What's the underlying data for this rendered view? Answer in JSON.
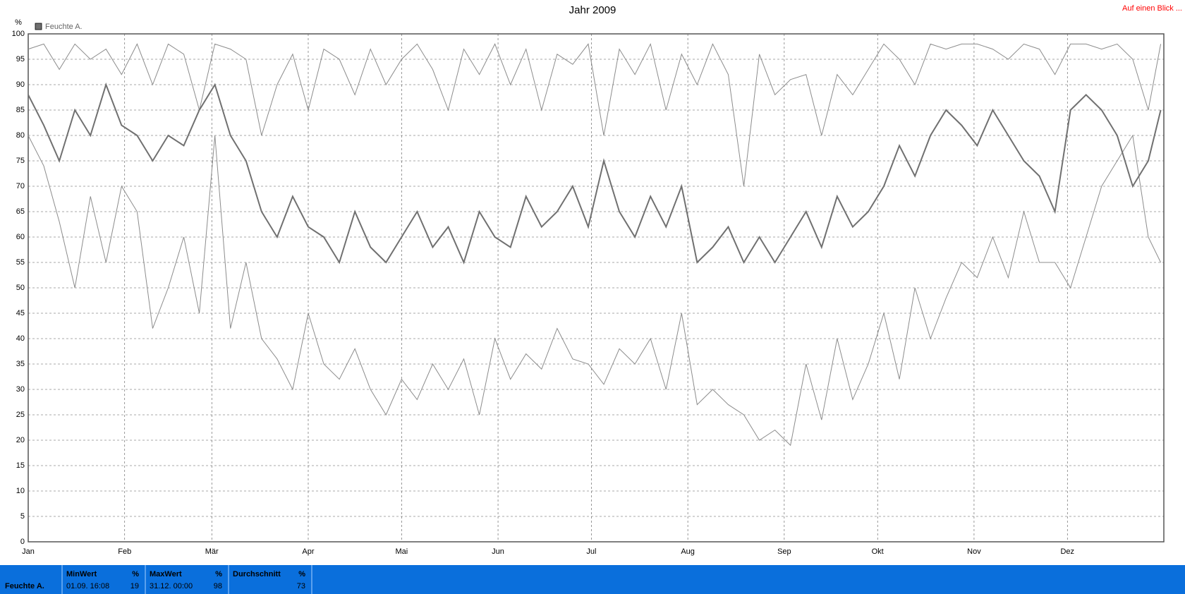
{
  "chart_data": {
    "type": "line",
    "title": "Jahr 2009",
    "ylabel": "%",
    "legend": {
      "label": "Feuchte A.",
      "color": "#707070",
      "corner": "top-left"
    },
    "grid": true,
    "xlim": [
      1,
      366
    ],
    "ylim": [
      0,
      100
    ],
    "xticks": [
      {
        "value": 1,
        "label": "Jan"
      },
      {
        "value": 32,
        "label": "Feb"
      },
      {
        "value": 60,
        "label": "Mär"
      },
      {
        "value": 91,
        "label": "Apr"
      },
      {
        "value": 121,
        "label": "Mai"
      },
      {
        "value": 152,
        "label": "Jun"
      },
      {
        "value": 182,
        "label": "Jul"
      },
      {
        "value": 213,
        "label": "Aug"
      },
      {
        "value": 244,
        "label": "Sep"
      },
      {
        "value": 274,
        "label": "Okt"
      },
      {
        "value": 305,
        "label": "Nov"
      },
      {
        "value": 335,
        "label": "Dez"
      }
    ],
    "yticks": [
      0,
      5,
      10,
      15,
      20,
      25,
      30,
      35,
      40,
      45,
      50,
      55,
      60,
      65,
      70,
      75,
      80,
      85,
      90,
      95,
      100
    ],
    "x": [
      1,
      6,
      11,
      16,
      21,
      26,
      31,
      36,
      41,
      46,
      51,
      56,
      61,
      66,
      71,
      76,
      81,
      86,
      91,
      96,
      101,
      106,
      111,
      116,
      121,
      126,
      131,
      136,
      141,
      146,
      151,
      156,
      161,
      166,
      171,
      176,
      181,
      186,
      191,
      196,
      201,
      206,
      211,
      216,
      221,
      226,
      231,
      236,
      241,
      246,
      251,
      256,
      261,
      266,
      271,
      276,
      281,
      286,
      291,
      296,
      301,
      306,
      311,
      316,
      321,
      326,
      331,
      336,
      341,
      346,
      351,
      356,
      361,
      365
    ],
    "series": [
      {
        "color": "#8c8c8c",
        "width": 1,
        "values": [
          97,
          98,
          93,
          98,
          95,
          97,
          92,
          98,
          90,
          98,
          96,
          85,
          98,
          97,
          95,
          80,
          90,
          96,
          85,
          97,
          95,
          88,
          97,
          90,
          95,
          98,
          93,
          85,
          97,
          92,
          98,
          90,
          97,
          85,
          96,
          94,
          98,
          80,
          97,
          92,
          98,
          85,
          96,
          90,
          98,
          92,
          70,
          96,
          88,
          91,
          92,
          80,
          92,
          88,
          93,
          98,
          95,
          90,
          98,
          97,
          98,
          98,
          97,
          95,
          98,
          97,
          92,
          98,
          98,
          97,
          98,
          95,
          85,
          98
        ]
      },
      {
        "color": "#8c8c8c",
        "width": 1,
        "values": [
          80,
          74,
          63,
          50,
          68,
          55,
          70,
          65,
          42,
          50,
          60,
          45,
          80,
          42,
          55,
          40,
          36,
          30,
          45,
          35,
          32,
          38,
          30,
          25,
          32,
          28,
          35,
          30,
          36,
          25,
          40,
          32,
          37,
          34,
          42,
          36,
          35,
          31,
          38,
          35,
          40,
          30,
          45,
          27,
          30,
          27,
          25,
          20,
          22,
          19,
          35,
          24,
          40,
          28,
          35,
          45,
          32,
          50,
          40,
          48,
          55,
          52,
          60,
          52,
          65,
          55,
          55,
          50,
          60,
          70,
          75,
          80,
          60,
          55
        ]
      },
      {
        "color": "#707070",
        "width": 2,
        "values": [
          88,
          82,
          75,
          85,
          80,
          90,
          82,
          80,
          75,
          80,
          78,
          85,
          90,
          80,
          75,
          65,
          60,
          68,
          62,
          60,
          55,
          65,
          58,
          55,
          60,
          65,
          58,
          62,
          55,
          65,
          60,
          58,
          68,
          62,
          65,
          70,
          62,
          75,
          65,
          60,
          68,
          62,
          70,
          55,
          58,
          62,
          55,
          60,
          55,
          60,
          65,
          58,
          68,
          62,
          65,
          70,
          78,
          72,
          80,
          85,
          82,
          78,
          85,
          80,
          75,
          72,
          65,
          85,
          88,
          85,
          80,
          70,
          75,
          85
        ]
      }
    ]
  },
  "link": "Auf einen Blick ...",
  "stats": {
    "row_label": "Feuchte A.",
    "columns": [
      {
        "header": "MinWert",
        "unit": "%",
        "time": "01.09.  16:08",
        "value": "19"
      },
      {
        "header": "MaxWert",
        "unit": "%",
        "time": "31.12.  00:00",
        "value": "98"
      },
      {
        "header": "Durchschnitt",
        "unit": "%",
        "time": "",
        "value": "73"
      }
    ]
  }
}
